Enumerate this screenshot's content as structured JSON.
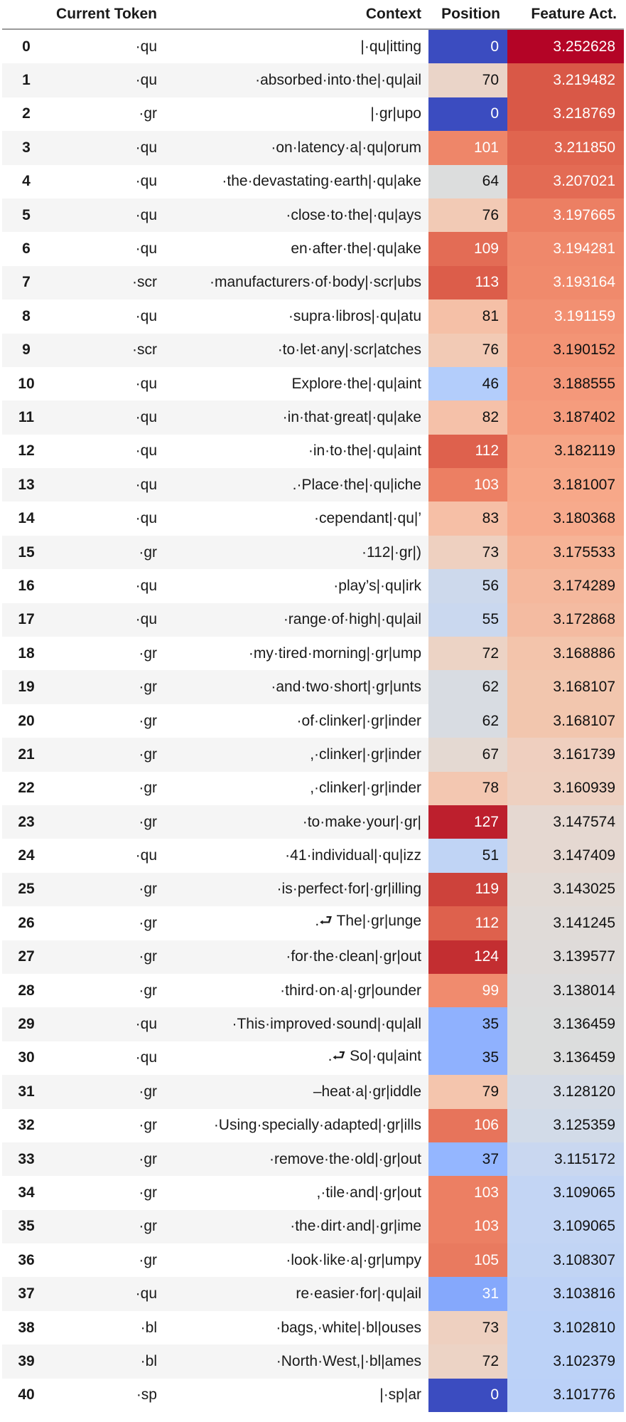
{
  "headers": {
    "index": "",
    "token": "Current Token",
    "context": "Context",
    "position": "Position",
    "activation": "Feature Act."
  },
  "rows": [
    {
      "idx": "0",
      "token": "·qu",
      "context": "|·qu|itting",
      "position": 0,
      "activation": 3.252628,
      "pos_color": "#3b4cc0",
      "act_color": "#b40426"
    },
    {
      "idx": "1",
      "token": "·qu",
      "context": "·absorbed·into·the|·qu|ail",
      "position": 70,
      "activation": 3.219482,
      "pos_color": "#ead4c8",
      "act_color": "#d95847"
    },
    {
      "idx": "2",
      "token": "·gr",
      "context": "|·gr|upo",
      "position": 0,
      "activation": 3.218769,
      "pos_color": "#3b4cc0",
      "act_color": "#d95847"
    },
    {
      "idx": "3",
      "token": "·qu",
      "context": "·on·latency·a|·qu|orum",
      "position": 101,
      "activation": 3.21185,
      "pos_color": "#ee8669",
      "act_color": "#e0654f"
    },
    {
      "idx": "4",
      "token": "·qu",
      "context": "·the·devastating·earth|·qu|ake",
      "position": 64,
      "activation": 3.207021,
      "pos_color": "#dcdddd",
      "act_color": "#e36b54"
    },
    {
      "idx": "5",
      "token": "·qu",
      "context": "·close·to·the|·qu|ays",
      "position": 76,
      "activation": 3.197665,
      "pos_color": "#f2cab5",
      "act_color": "#ec7f63"
    },
    {
      "idx": "6",
      "token": "·qu",
      "context": "en·after·the|·qu|ake",
      "position": 109,
      "activation": 3.194281,
      "pos_color": "#e36c55",
      "act_color": "#ef886b"
    },
    {
      "idx": "7",
      "token": "·scr",
      "context": "·manufacturers·of·body|·scr|ubs",
      "position": 113,
      "activation": 3.193164,
      "pos_color": "#dc5d4a",
      "act_color": "#f08a6c"
    },
    {
      "idx": "8",
      "token": "·qu",
      "context": "·supra·libros|·qu|atu",
      "position": 81,
      "activation": 3.191159,
      "pos_color": "#f5c0a7",
      "act_color": "#f29072"
    },
    {
      "idx": "9",
      "token": "·scr",
      "context": "·to·let·any|·scr|atches",
      "position": 76,
      "activation": 3.190152,
      "pos_color": "#f2cab5",
      "act_color": "#f39475"
    },
    {
      "idx": "10",
      "token": "·qu",
      "context": "Explore·the|·qu|aint",
      "position": 46,
      "activation": 3.188555,
      "pos_color": "#b3cdfb",
      "act_color": "#f4987a"
    },
    {
      "idx": "11",
      "token": "·qu",
      "context": "·in·that·great|·qu|ake",
      "position": 82,
      "activation": 3.187402,
      "pos_color": "#f5c1a9",
      "act_color": "#f59c7d"
    },
    {
      "idx": "12",
      "token": "·qu",
      "context": "·in·to·the|·qu|aint",
      "position": 112,
      "activation": 3.182119,
      "pos_color": "#de614d",
      "act_color": "#f6a586"
    },
    {
      "idx": "13",
      "token": "·qu",
      "context": ".·Place·the|·qu|iche",
      "position": 103,
      "activation": 3.181007,
      "pos_color": "#ec7f63",
      "act_color": "#f7a889"
    },
    {
      "idx": "14",
      "token": "·qu",
      "context": "·cependant|·qu|’",
      "position": 83,
      "activation": 3.180368,
      "pos_color": "#f6bfa6",
      "act_color": "#f7aa8c"
    },
    {
      "idx": "15",
      "token": "·gr",
      "context": "·112|·gr|)",
      "position": 73,
      "activation": 3.175533,
      "pos_color": "#eed0c0",
      "act_color": "#f6b396"
    },
    {
      "idx": "16",
      "token": "·qu",
      "context": "·play’s|·qu|irk",
      "position": 56,
      "activation": 3.174289,
      "pos_color": "#cdd9ec",
      "act_color": "#f5b89d"
    },
    {
      "idx": "17",
      "token": "·qu",
      "context": "·range·of·high|·qu|ail",
      "position": 55,
      "activation": 3.172868,
      "pos_color": "#cad8ef",
      "act_color": "#f4bba1"
    },
    {
      "idx": "18",
      "token": "·gr",
      "context": "·my·tired·morning|·gr|ump",
      "position": 72,
      "activation": 3.168886,
      "pos_color": "#ecd3c5",
      "act_color": "#f3c4ab"
    },
    {
      "idx": "19",
      "token": "·gr",
      "context": "·and·two·short|·gr|unts",
      "position": 62,
      "activation": 3.168107,
      "pos_color": "#d8dce2",
      "act_color": "#f2c6ae"
    },
    {
      "idx": "20",
      "token": "·gr",
      "context": "·of·clinker|·gr|inder",
      "position": 62,
      "activation": 3.168107,
      "pos_color": "#d8dce2",
      "act_color": "#f2c6ae"
    },
    {
      "idx": "21",
      "token": "·gr",
      "context": ",·clinker|·gr|inder",
      "position": 67,
      "activation": 3.161739,
      "pos_color": "#e4d9d2",
      "act_color": "#efcfbf"
    },
    {
      "idx": "22",
      "token": "·gr",
      "context": ",·clinker|·gr|inder",
      "position": 78,
      "activation": 3.160939,
      "pos_color": "#f3c7b1",
      "act_color": "#eed0c0"
    },
    {
      "idx": "23",
      "token": "·gr",
      "context": "·to·make·your|·gr|",
      "position": 127,
      "activation": 3.147574,
      "pos_color": "#bd1f2d",
      "act_color": "#e5d8d1"
    },
    {
      "idx": "24",
      "token": "·qu",
      "context": "·41·individual|·qu|izz",
      "position": 51,
      "activation": 3.147409,
      "pos_color": "#c0d4f5",
      "act_color": "#e5d8d1"
    },
    {
      "idx": "25",
      "token": "·gr",
      "context": "·is·perfect·for|·gr|illing",
      "position": 119,
      "activation": 3.143025,
      "pos_color": "#cd423b",
      "act_color": "#e2dad5"
    },
    {
      "idx": "26",
      "token": "·gr",
      "context": ".⮐ The|·gr|unge",
      "position": 112,
      "activation": 3.141245,
      "pos_color": "#de614d",
      "act_color": "#e0dbd8"
    },
    {
      "idx": "27",
      "token": "·gr",
      "context": "·for·the·clean|·gr|out",
      "position": 124,
      "activation": 3.139577,
      "pos_color": "#c32e31",
      "act_color": "#dfdbd9"
    },
    {
      "idx": "28",
      "token": "·gr",
      "context": "·third·on·a|·gr|ounder",
      "position": 99,
      "activation": 3.138014,
      "pos_color": "#f08b6e",
      "act_color": "#dddcdc"
    },
    {
      "idx": "29",
      "token": "·qu",
      "context": "·This·improved·sound|·qu|all",
      "position": 35,
      "activation": 3.136459,
      "pos_color": "#8fb1fe",
      "act_color": "#dcdddd"
    },
    {
      "idx": "30",
      "token": "·qu",
      "context": ".⮐ So|·qu|aint",
      "position": 35,
      "activation": 3.136459,
      "pos_color": "#8fb1fe",
      "act_color": "#dcdddd"
    },
    {
      "idx": "31",
      "token": "·gr",
      "context": "–heat·a|·gr|iddle",
      "position": 79,
      "activation": 3.12812,
      "pos_color": "#f4c5ad",
      "act_color": "#d5dbe5"
    },
    {
      "idx": "32",
      "token": "·gr",
      "context": "·Using·specially·adapted|·gr|ills",
      "position": 106,
      "activation": 3.125359,
      "pos_color": "#e7745b",
      "act_color": "#d2dbe8"
    },
    {
      "idx": "33",
      "token": "·gr",
      "context": "·remove·the·old|·gr|out",
      "position": 37,
      "activation": 3.115172,
      "pos_color": "#94b6ff",
      "act_color": "#c9d7f0"
    },
    {
      "idx": "34",
      "token": "·gr",
      "context": ",·tile·and|·gr|out",
      "position": 103,
      "activation": 3.109065,
      "pos_color": "#ec7f63",
      "act_color": "#c3d5f4"
    },
    {
      "idx": "35",
      "token": "·gr",
      "context": "·the·dirt·and|·gr|ime",
      "position": 103,
      "activation": 3.109065,
      "pos_color": "#ec7f63",
      "act_color": "#c3d5f4"
    },
    {
      "idx": "36",
      "token": "·gr",
      "context": "·look·like·a|·gr|umpy",
      "position": 105,
      "activation": 3.108307,
      "pos_color": "#e97a5f",
      "act_color": "#c1d4f4"
    },
    {
      "idx": "37",
      "token": "·qu",
      "context": "re·easier·for|·qu|ail",
      "position": 31,
      "activation": 3.103816,
      "pos_color": "#85a8fc",
      "act_color": "#bed2f6"
    },
    {
      "idx": "38",
      "token": "·bl",
      "context": "·bags,·white|·bl|ouses",
      "position": 73,
      "activation": 3.10281,
      "pos_color": "#eed0c0",
      "act_color": "#bcd2f7"
    },
    {
      "idx": "39",
      "token": "·bl",
      "context": "·North·West,|·bl|ames",
      "position": 72,
      "activation": 3.102379,
      "pos_color": "#ecd3c5",
      "act_color": "#bcd2f7"
    },
    {
      "idx": "40",
      "token": "·sp",
      "context": "|·sp|ar",
      "position": 0,
      "activation": 3.101776,
      "pos_color": "#3b4cc0",
      "act_color": "#bbd1f8"
    }
  ]
}
